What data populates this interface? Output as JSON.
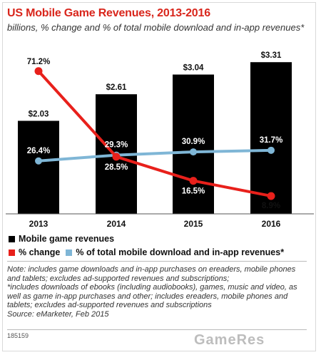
{
  "header": {
    "title": "US Mobile Game Revenues, 2013-2016",
    "subtitle": "billions, % change and % of total mobile download and in-app revenues*"
  },
  "chart_data": {
    "type": "bar",
    "categories": [
      "2013",
      "2014",
      "2015",
      "2016"
    ],
    "series": [
      {
        "name": "Mobile game revenues",
        "kind": "bar",
        "values": [
          2.03,
          2.61,
          3.04,
          3.31
        ],
        "labels": [
          "$2.03",
          "$2.61",
          "$3.04",
          "$3.31"
        ],
        "color": "#000000"
      },
      {
        "name": "% change",
        "kind": "line",
        "values": [
          71.2,
          28.5,
          16.5,
          8.9
        ],
        "labels": [
          "71.2%",
          "28.5%",
          "16.5%",
          "8.9%"
        ],
        "color": "#e8201b"
      },
      {
        "name": "% of total mobile download and in-app revenues*",
        "kind": "line",
        "values": [
          26.4,
          29.3,
          30.9,
          31.7
        ],
        "labels": [
          "26.4%",
          "29.3%",
          "30.9%",
          "31.7%"
        ],
        "color": "#7fb6d6"
      }
    ],
    "bar_ylim": [
      0,
      3.5
    ],
    "pct_ylim": [
      0,
      80
    ],
    "grid": false,
    "legend_position": "bottom-left"
  },
  "notes": [
    "Note: includes game downloads and in-app purchases on ereaders, mobile phones and tablets; excludes ad-supported revenues and subscriptions;",
    "*includes downloads of ebooks (including audiobooks), games, music and video, as well as game in-app purchases and other; includes ereaders, mobile phones and tablets; excludes ad-supported revenues and subscriptions",
    "Source: eMarketer, Feb 2015"
  ],
  "code": "185159",
  "watermark": "GameRes"
}
